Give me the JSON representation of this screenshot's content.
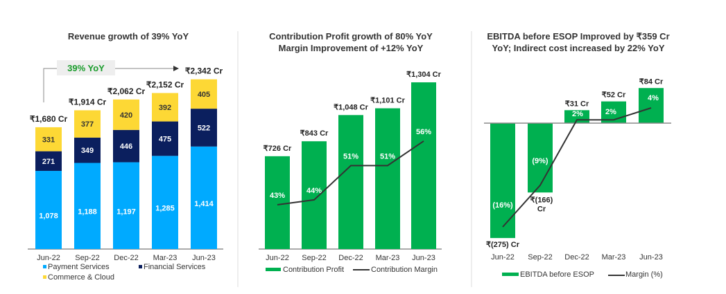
{
  "chart_data": [
    {
      "type": "bar",
      "stacked": true,
      "title": "Revenue growth of 39% YoY",
      "categories": [
        "Jun-22",
        "Sep-22",
        "Dec-22",
        "Mar-23",
        "Jun-23"
      ],
      "series": [
        {
          "name": "Payment Services",
          "values": [
            1078,
            1188,
            1197,
            1285,
            1414
          ],
          "color": "#00aaff",
          "labels": [
            "1,078",
            "1,188",
            "1,197",
            "1,285",
            "1,414"
          ]
        },
        {
          "name": "Financial Services",
          "values": [
            271,
            349,
            446,
            475,
            522
          ],
          "color": "#0b1f5e",
          "labels": [
            "271",
            "349",
            "446",
            "475",
            "522"
          ]
        },
        {
          "name": "Commerce & Cloud",
          "values": [
            331,
            377,
            420,
            392,
            405
          ],
          "color": "#fdd835",
          "labels": [
            "331",
            "377",
            "420",
            "392",
            "405"
          ]
        }
      ],
      "totals": [
        "₹1,680 Cr",
        "₹1,914 Cr",
        "₹2,062 Cr",
        "₹2,152 Cr",
        "₹2,342 Cr"
      ],
      "annotation": "39% YoY",
      "annotation_color": "#1a9c2c",
      "legend": "bottom"
    },
    {
      "type": "bar",
      "title": [
        "Contribution Profit growth of 80% YoY",
        "Margin Improvement of +12% YoY"
      ],
      "categories": [
        "Jun-22",
        "Sep-22",
        "Dec-22",
        "Mar-23",
        "Jun-23"
      ],
      "series": [
        {
          "name": "Contribution Profit",
          "type": "bar",
          "values": [
            726,
            843,
            1048,
            1101,
            1304
          ],
          "color": "#00b050",
          "labels": [
            "₹726 Cr",
            "₹843 Cr",
            "₹1,048 Cr",
            "₹1,101 Cr",
            "₹1,304 Cr"
          ]
        },
        {
          "name": "Contribution Margin",
          "type": "line",
          "values": [
            43,
            44,
            51,
            51,
            56
          ],
          "color": "#333333",
          "labels": [
            "43%",
            "44%",
            "51%",
            "51%",
            "56%"
          ]
        }
      ],
      "legend": "bottom"
    },
    {
      "type": "bar",
      "title": [
        "EBITDA before ESOP Improved by ₹359 Cr",
        "YoY; Indirect cost increased by 22% YoY"
      ],
      "categories": [
        "Jun-22",
        "Sep-22",
        "Dec-22",
        "Mar-23",
        "Jun-23"
      ],
      "series": [
        {
          "name": "EBITDA before ESOP",
          "type": "bar",
          "values": [
            -275,
            -166,
            31,
            52,
            84
          ],
          "color": "#00b050",
          "labels": [
            "₹(275) Cr",
            "₹(166) Cr",
            "₹31 Cr",
            "₹52 Cr",
            "₹84 Cr"
          ]
        },
        {
          "name": "Margin (%)",
          "type": "line",
          "values": [
            -16,
            -9,
            2,
            2,
            4
          ],
          "color": "#333333",
          "labels": [
            "(16%)",
            "(9%)",
            "2%",
            "2%",
            "4%"
          ]
        }
      ],
      "legend": "bottom"
    }
  ]
}
